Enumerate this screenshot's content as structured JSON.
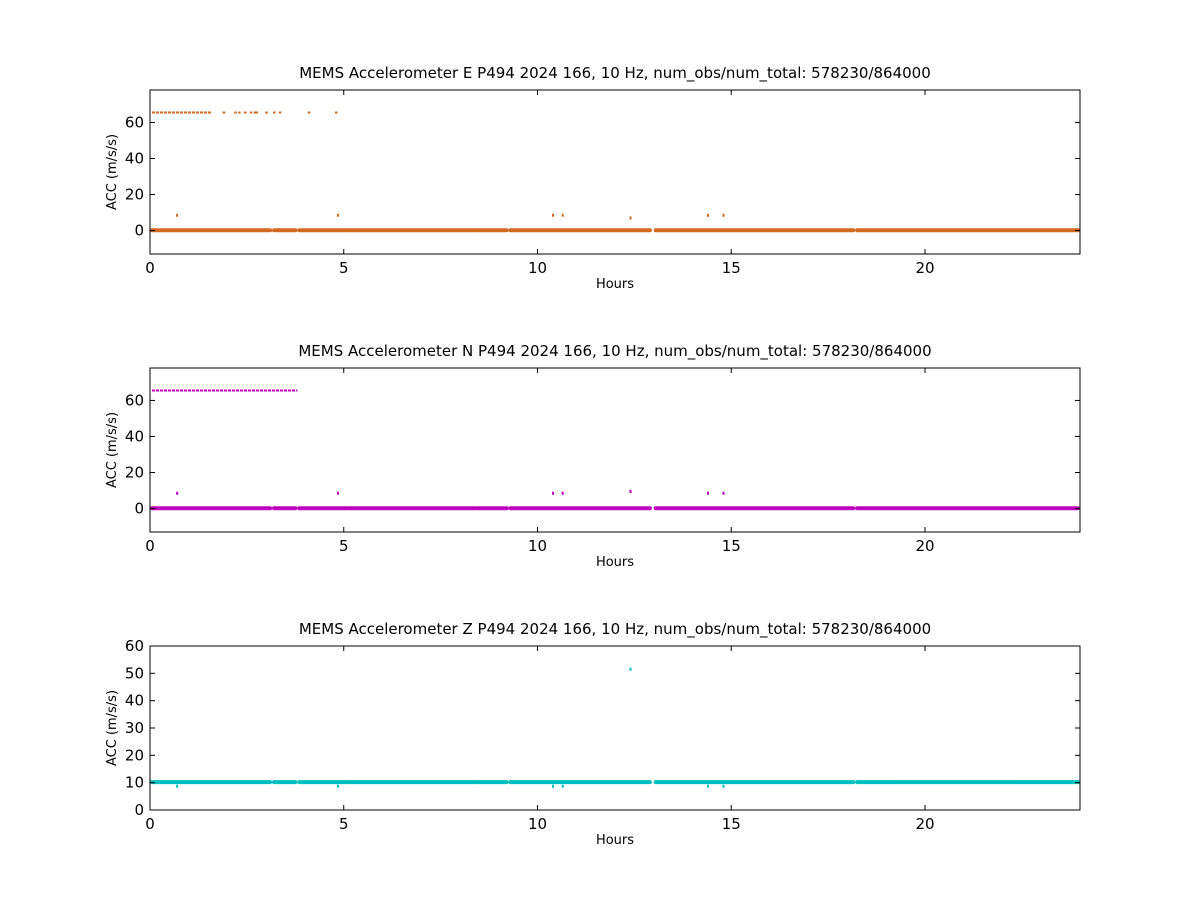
{
  "chart_data": [
    {
      "type": "scatter",
      "title": "MEMS Accelerometer E P494 2024 166, 10 Hz, num_obs/num_total: 578230/864000",
      "xlabel": "Hours",
      "ylabel": "ACC (m/s/s)",
      "xlim": [
        0,
        24
      ],
      "ylim": [
        -13,
        78
      ],
      "xticks": [
        0,
        5,
        10,
        15,
        20
      ],
      "yticks": [
        0,
        20,
        40,
        60
      ],
      "color": "#d2691e",
      "grid": false,
      "baseline": {
        "value": 0.2,
        "segments": [
          [
            0.05,
            3.1
          ],
          [
            3.2,
            3.75
          ],
          [
            3.85,
            5.1
          ],
          [
            5.15,
            8.4
          ],
          [
            8.45,
            9.2
          ],
          [
            9.3,
            12.9
          ],
          [
            13.05,
            18.15
          ],
          [
            18.25,
            23.95
          ]
        ]
      },
      "upper_band": {
        "value": 65.5,
        "segments": [
          [
            0.05,
            1.6
          ]
        ],
        "points_x": [
          1.9,
          2.2,
          2.3,
          2.45,
          2.6,
          2.7,
          2.75,
          3.0,
          3.2,
          3.35,
          4.1,
          4.8
        ]
      },
      "points": [
        {
          "x": 0.7,
          "y": 8.5
        },
        {
          "x": 4.85,
          "y": 8.5
        },
        {
          "x": 10.4,
          "y": 8.5
        },
        {
          "x": 10.65,
          "y": 8.5
        },
        {
          "x": 12.4,
          "y": 7.0
        },
        {
          "x": 14.4,
          "y": 8.5
        },
        {
          "x": 14.8,
          "y": 8.5
        }
      ]
    },
    {
      "type": "scatter",
      "title": "MEMS Accelerometer N P494 2024 166, 10 Hz, num_obs/num_total: 578230/864000",
      "xlabel": "Hours",
      "ylabel": "ACC (m/s/s)",
      "xlim": [
        0,
        24
      ],
      "ylim": [
        -13,
        78
      ],
      "xticks": [
        0,
        5,
        10,
        15,
        20
      ],
      "yticks": [
        0,
        20,
        40,
        60
      ],
      "color": "#bf00bf",
      "grid": false,
      "baseline": {
        "value": 0.2,
        "segments": [
          [
            0.05,
            3.1
          ],
          [
            3.2,
            3.75
          ],
          [
            3.85,
            5.1
          ],
          [
            5.15,
            8.4
          ],
          [
            8.45,
            9.2
          ],
          [
            9.3,
            12.9
          ],
          [
            13.05,
            18.15
          ],
          [
            18.25,
            23.95
          ]
        ]
      },
      "upper_band": {
        "value": 65.5,
        "segments": [
          [
            0.05,
            3.8
          ]
        ],
        "points_x": []
      },
      "points": [
        {
          "x": 0.7,
          "y": 8.5
        },
        {
          "x": 4.85,
          "y": 8.5
        },
        {
          "x": 10.4,
          "y": 8.5
        },
        {
          "x": 10.65,
          "y": 8.5
        },
        {
          "x": 12.4,
          "y": 9.5
        },
        {
          "x": 14.4,
          "y": 8.5
        },
        {
          "x": 14.8,
          "y": 8.5
        }
      ]
    },
    {
      "type": "scatter",
      "title": "MEMS Accelerometer Z P494 2024 166, 10 Hz, num_obs/num_total: 578230/864000",
      "xlabel": "Hours",
      "ylabel": "ACC (m/s/s)",
      "xlim": [
        0,
        24
      ],
      "ylim": [
        0,
        60
      ],
      "xticks": [
        0,
        5,
        10,
        15,
        20
      ],
      "yticks": [
        0,
        10,
        20,
        30,
        40,
        50,
        60
      ],
      "color": "#00bfbf",
      "grid": false,
      "baseline": {
        "value": 10.2,
        "segments": [
          [
            0.05,
            3.1
          ],
          [
            3.2,
            3.75
          ],
          [
            3.85,
            5.1
          ],
          [
            5.15,
            8.4
          ],
          [
            8.45,
            9.2
          ],
          [
            9.3,
            12.9
          ],
          [
            13.05,
            18.15
          ],
          [
            18.25,
            23.95
          ]
        ]
      },
      "upper_band": null,
      "points": [
        {
          "x": 0.7,
          "y": 8.7
        },
        {
          "x": 4.85,
          "y": 8.7
        },
        {
          "x": 10.4,
          "y": 8.7
        },
        {
          "x": 10.65,
          "y": 8.7
        },
        {
          "x": 12.4,
          "y": 51.5
        },
        {
          "x": 14.4,
          "y": 8.7
        },
        {
          "x": 14.8,
          "y": 8.7
        }
      ]
    }
  ]
}
